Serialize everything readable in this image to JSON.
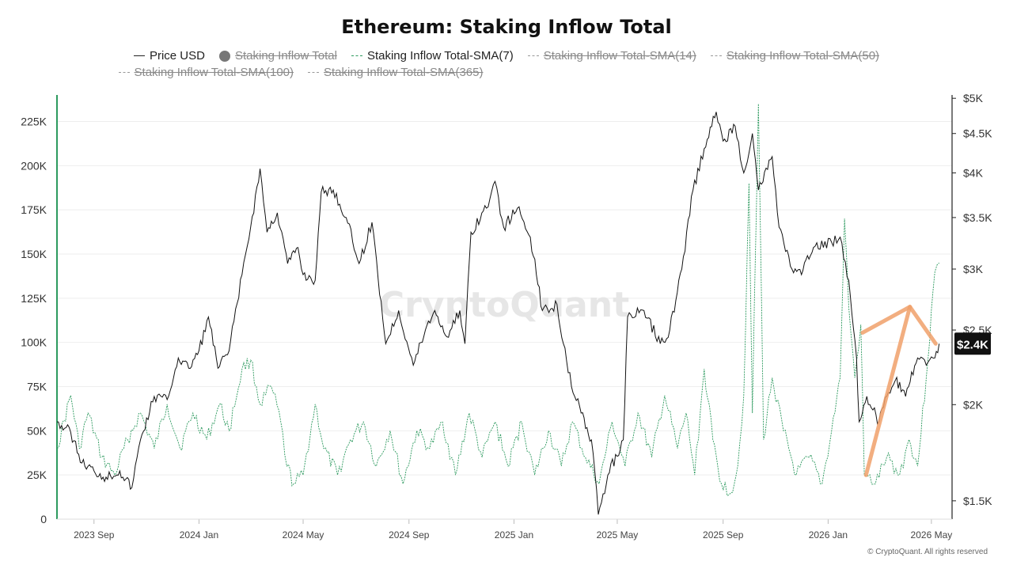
{
  "chart_data": {
    "type": "line",
    "title": "Ethereum: Staking Inflow Total",
    "legend": [
      {
        "name": "Price USD",
        "style": "solid-line",
        "color": "#222222",
        "enabled": true
      },
      {
        "name": "Staking Inflow Total",
        "style": "dot",
        "color": "#777777",
        "enabled": false
      },
      {
        "name": "Staking Inflow Total-SMA(7)",
        "style": "dashed-line",
        "color": "#2d9a5f",
        "enabled": true
      },
      {
        "name": "Staking Inflow Total-SMA(14)",
        "style": "dashed-line",
        "color": "#999999",
        "enabled": false
      },
      {
        "name": "Staking Inflow Total-SMA(50)",
        "style": "dashed-line",
        "color": "#999999",
        "enabled": false
      },
      {
        "name": "Staking Inflow Total-SMA(100)",
        "style": "dashed-line",
        "color": "#999999",
        "enabled": false
      },
      {
        "name": "Staking Inflow Total-SMA(365)",
        "style": "dashed-line",
        "color": "#999999",
        "enabled": false
      }
    ],
    "x_axis": {
      "ticks": [
        "2023 Sep",
        "2024 Jan",
        "2024 May",
        "2024 Sep",
        "2025 Jan",
        "2025 May",
        "2025 Sep",
        "2026 Jan",
        "2026 May"
      ],
      "range": [
        "2023-07-20",
        "2026-05-25"
      ]
    },
    "y_left": {
      "ticks": [
        "0",
        "25K",
        "50K",
        "75K",
        "100K",
        "125K",
        "150K",
        "175K",
        "200K",
        "225K"
      ],
      "tick_values": [
        0,
        25000,
        50000,
        75000,
        100000,
        125000,
        150000,
        175000,
        200000,
        225000
      ],
      "range": [
        0,
        240000
      ]
    },
    "y_right": {
      "scale": "log",
      "ticks": [
        "$1.5K",
        "$2K",
        "$2.5K",
        "$3K",
        "$3.5K",
        "$4K",
        "$4.5K",
        "$5K"
      ],
      "tick_values": [
        1500,
        2000,
        2500,
        3000,
        3500,
        4000,
        4500,
        5000
      ],
      "range": [
        1420,
        5050
      ],
      "current_price_label": "$2.4K",
      "current_price": 2400
    },
    "grid": true,
    "watermark": "CryptoQuant",
    "series": [
      {
        "name": "Price USD",
        "color": "#111111",
        "points": [
          [
            "2023-07-20",
            1900
          ],
          [
            "2023-08-05",
            1840
          ],
          [
            "2023-08-18",
            1680
          ],
          [
            "2023-09-01",
            1640
          ],
          [
            "2023-09-15",
            1610
          ],
          [
            "2023-10-01",
            1640
          ],
          [
            "2023-10-15",
            1560
          ],
          [
            "2023-10-25",
            1800
          ],
          [
            "2023-11-10",
            2050
          ],
          [
            "2023-11-25",
            2030
          ],
          [
            "2023-12-08",
            2300
          ],
          [
            "2023-12-20",
            2230
          ],
          [
            "2024-01-01",
            2350
          ],
          [
            "2024-01-12",
            2600
          ],
          [
            "2024-01-23",
            2230
          ],
          [
            "2024-02-05",
            2350
          ],
          [
            "2024-02-20",
            2950
          ],
          [
            "2024-03-01",
            3400
          ],
          [
            "2024-03-12",
            4050
          ],
          [
            "2024-03-20",
            3350
          ],
          [
            "2024-04-01",
            3550
          ],
          [
            "2024-04-13",
            3050
          ],
          [
            "2024-04-25",
            3200
          ],
          [
            "2024-05-01",
            2950
          ],
          [
            "2024-05-15",
            2900
          ],
          [
            "2024-05-22",
            3780
          ],
          [
            "2024-06-05",
            3800
          ],
          [
            "2024-06-20",
            3500
          ],
          [
            "2024-07-05",
            3050
          ],
          [
            "2024-07-20",
            3450
          ],
          [
            "2024-08-05",
            2400
          ],
          [
            "2024-08-20",
            2650
          ],
          [
            "2024-09-06",
            2250
          ],
          [
            "2024-09-20",
            2500
          ],
          [
            "2024-10-01",
            2650
          ],
          [
            "2024-10-15",
            2450
          ],
          [
            "2024-10-30",
            2650
          ],
          [
            "2024-11-05",
            2400
          ],
          [
            "2024-11-12",
            3350
          ],
          [
            "2024-11-30",
            3600
          ],
          [
            "2024-12-10",
            3900
          ],
          [
            "2024-12-20",
            3400
          ],
          [
            "2025-01-05",
            3600
          ],
          [
            "2025-01-20",
            3300
          ],
          [
            "2025-02-03",
            2650
          ],
          [
            "2025-02-20",
            2700
          ],
          [
            "2025-03-05",
            2200
          ],
          [
            "2025-03-20",
            1950
          ],
          [
            "2025-04-01",
            1800
          ],
          [
            "2025-04-09",
            1440
          ],
          [
            "2025-04-20",
            1620
          ],
          [
            "2025-05-08",
            1800
          ],
          [
            "2025-05-13",
            2600
          ],
          [
            "2025-06-01",
            2650
          ],
          [
            "2025-06-20",
            2400
          ],
          [
            "2025-07-01",
            2500
          ],
          [
            "2025-07-15",
            3000
          ],
          [
            "2025-07-28",
            3800
          ],
          [
            "2025-08-10",
            4300
          ],
          [
            "2025-08-24",
            4800
          ],
          [
            "2025-09-01",
            4400
          ],
          [
            "2025-09-15",
            4600
          ],
          [
            "2025-09-25",
            4000
          ],
          [
            "2025-10-05",
            4500
          ],
          [
            "2025-10-12",
            3800
          ],
          [
            "2025-10-28",
            4200
          ],
          [
            "2025-11-05",
            3400
          ],
          [
            "2025-11-20",
            3000
          ],
          [
            "2025-12-01",
            2950
          ],
          [
            "2025-12-15",
            3200
          ],
          [
            "2026-01-05",
            3250
          ],
          [
            "2026-01-15",
            3300
          ],
          [
            "2026-01-25",
            2900
          ],
          [
            "2026-02-03",
            2300
          ],
          [
            "2026-02-06",
            1900
          ],
          [
            "2026-02-15",
            2050
          ],
          [
            "2026-03-01",
            1900
          ],
          [
            "2026-03-10",
            2050
          ],
          [
            "2026-03-20",
            2150
          ],
          [
            "2026-04-01",
            2050
          ],
          [
            "2026-04-15",
            2300
          ],
          [
            "2026-04-25",
            2250
          ],
          [
            "2026-05-05",
            2300
          ],
          [
            "2026-05-10",
            2400
          ]
        ]
      },
      {
        "name": "Staking Inflow Total-SMA(7)",
        "color": "#2d9a5f",
        "points": [
          [
            "2023-07-20",
            40000
          ],
          [
            "2023-08-05",
            70000
          ],
          [
            "2023-08-15",
            40000
          ],
          [
            "2023-08-25",
            60000
          ],
          [
            "2023-09-10",
            35000
          ],
          [
            "2023-09-25",
            25000
          ],
          [
            "2023-10-10",
            45000
          ],
          [
            "2023-10-25",
            60000
          ],
          [
            "2023-11-10",
            40000
          ],
          [
            "2023-11-25",
            65000
          ],
          [
            "2023-12-10",
            40000
          ],
          [
            "2023-12-25",
            60000
          ],
          [
            "2024-01-10",
            45000
          ],
          [
            "2024-01-25",
            65000
          ],
          [
            "2024-02-05",
            50000
          ],
          [
            "2024-02-20",
            85000
          ],
          [
            "2024-03-01",
            90000
          ],
          [
            "2024-03-12",
            65000
          ],
          [
            "2024-03-25",
            75000
          ],
          [
            "2024-04-05",
            55000
          ],
          [
            "2024-04-12",
            30000
          ],
          [
            "2024-04-20",
            20000
          ],
          [
            "2024-05-01",
            25000
          ],
          [
            "2024-05-15",
            65000
          ],
          [
            "2024-05-25",
            40000
          ],
          [
            "2024-06-10",
            25000
          ],
          [
            "2024-06-25",
            45000
          ],
          [
            "2024-07-10",
            55000
          ],
          [
            "2024-07-25",
            30000
          ],
          [
            "2024-08-10",
            50000
          ],
          [
            "2024-08-25",
            20000
          ],
          [
            "2024-09-10",
            50000
          ],
          [
            "2024-09-25",
            40000
          ],
          [
            "2024-10-10",
            55000
          ],
          [
            "2024-10-25",
            25000
          ],
          [
            "2024-11-10",
            60000
          ],
          [
            "2024-11-25",
            35000
          ],
          [
            "2024-12-10",
            55000
          ],
          [
            "2024-12-25",
            30000
          ],
          [
            "2025-01-10",
            55000
          ],
          [
            "2025-01-25",
            25000
          ],
          [
            "2025-02-10",
            50000
          ],
          [
            "2025-02-25",
            30000
          ],
          [
            "2025-03-10",
            55000
          ],
          [
            "2025-03-25",
            35000
          ],
          [
            "2025-04-10",
            20000
          ],
          [
            "2025-04-25",
            55000
          ],
          [
            "2025-05-10",
            30000
          ],
          [
            "2025-05-25",
            60000
          ],
          [
            "2025-06-10",
            35000
          ],
          [
            "2025-06-25",
            70000
          ],
          [
            "2025-07-10",
            40000
          ],
          [
            "2025-07-20",
            60000
          ],
          [
            "2025-07-30",
            25000
          ],
          [
            "2025-08-10",
            85000
          ],
          [
            "2025-08-20",
            45000
          ],
          [
            "2025-08-30",
            20000
          ],
          [
            "2025-09-10",
            15000
          ],
          [
            "2025-09-18",
            30000
          ],
          [
            "2025-09-25",
            70000
          ],
          [
            "2025-10-01",
            190000
          ],
          [
            "2025-10-05",
            60000
          ],
          [
            "2025-10-12",
            235000
          ],
          [
            "2025-10-18",
            45000
          ],
          [
            "2025-10-28",
            80000
          ],
          [
            "2025-11-10",
            50000
          ],
          [
            "2025-11-25",
            25000
          ],
          [
            "2025-12-10",
            35000
          ],
          [
            "2025-12-25",
            20000
          ],
          [
            "2026-01-05",
            50000
          ],
          [
            "2026-01-15",
            80000
          ],
          [
            "2026-01-20",
            170000
          ],
          [
            "2026-01-25",
            120000
          ],
          [
            "2026-02-01",
            80000
          ],
          [
            "2026-02-08",
            110000
          ],
          [
            "2026-02-12",
            25000
          ],
          [
            "2026-02-25",
            20000
          ],
          [
            "2026-03-10",
            35000
          ],
          [
            "2026-03-25",
            25000
          ],
          [
            "2026-04-05",
            45000
          ],
          [
            "2026-04-15",
            30000
          ],
          [
            "2026-04-25",
            80000
          ],
          [
            "2026-05-05",
            140000
          ],
          [
            "2026-05-10",
            145000
          ]
        ]
      }
    ],
    "annotation": {
      "type": "arrow",
      "color": "#f0a06a",
      "from": [
        "2026-02-14",
        1620
      ],
      "to": [
        "2026-04-06",
        2680
      ],
      "head_left_to": [
        "2026-02-10",
        2480
      ],
      "head_right_to": [
        "2026-05-06",
        2400
      ]
    }
  },
  "footer": {
    "copyright": "© CryptoQuant. All rights reserved"
  }
}
